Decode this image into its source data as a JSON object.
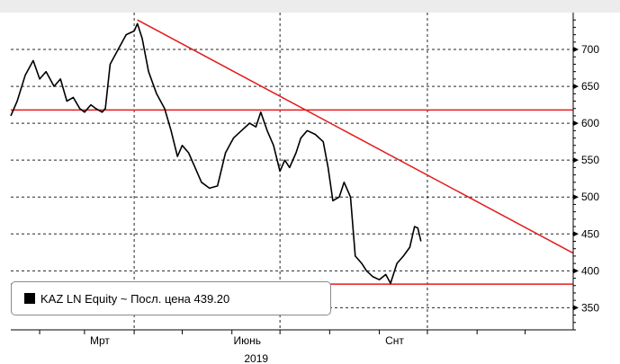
{
  "chart_data": {
    "type": "line",
    "series": [
      {
        "name": "KAZ LN Equity",
        "color": "#000000",
        "points": [
          [
            "2019-01-14",
            610
          ],
          [
            "2019-01-18",
            630
          ],
          [
            "2019-01-23",
            665
          ],
          [
            "2019-01-28",
            685
          ],
          [
            "2019-02-01",
            660
          ],
          [
            "2019-02-05",
            670
          ],
          [
            "2019-02-10",
            650
          ],
          [
            "2019-02-14",
            660
          ],
          [
            "2019-02-18",
            630
          ],
          [
            "2019-02-22",
            635
          ],
          [
            "2019-02-26",
            620
          ],
          [
            "2019-03-01",
            615
          ],
          [
            "2019-03-05",
            625
          ],
          [
            "2019-03-08",
            620
          ],
          [
            "2019-03-12",
            615
          ],
          [
            "2019-03-14",
            620
          ],
          [
            "2019-03-17",
            680
          ],
          [
            "2019-03-22",
            700
          ],
          [
            "2019-03-27",
            720
          ],
          [
            "2019-04-01",
            725
          ],
          [
            "2019-04-03",
            735
          ],
          [
            "2019-04-06",
            715
          ],
          [
            "2019-04-10",
            670
          ],
          [
            "2019-04-15",
            640
          ],
          [
            "2019-04-20",
            620
          ],
          [
            "2019-04-24",
            590
          ],
          [
            "2019-04-28",
            555
          ],
          [
            "2019-05-01",
            570
          ],
          [
            "2019-05-05",
            560
          ],
          [
            "2019-05-09",
            540
          ],
          [
            "2019-05-13",
            520
          ],
          [
            "2019-05-18",
            512
          ],
          [
            "2019-05-23",
            515
          ],
          [
            "2019-05-28",
            560
          ],
          [
            "2019-06-02",
            580
          ],
          [
            "2019-06-07",
            590
          ],
          [
            "2019-06-12",
            600
          ],
          [
            "2019-06-16",
            595
          ],
          [
            "2019-06-19",
            615
          ],
          [
            "2019-06-23",
            590
          ],
          [
            "2019-06-27",
            570
          ],
          [
            "2019-07-01",
            535
          ],
          [
            "2019-07-04",
            550
          ],
          [
            "2019-07-07",
            540
          ],
          [
            "2019-07-11",
            560
          ],
          [
            "2019-07-14",
            580
          ],
          [
            "2019-07-18",
            590
          ],
          [
            "2019-07-23",
            585
          ],
          [
            "2019-07-28",
            575
          ],
          [
            "2019-07-31",
            540
          ],
          [
            "2019-08-03",
            495
          ],
          [
            "2019-08-07",
            500
          ],
          [
            "2019-08-10",
            520
          ],
          [
            "2019-08-14",
            500
          ],
          [
            "2019-08-17",
            420
          ],
          [
            "2019-08-21",
            410
          ],
          [
            "2019-08-24",
            400
          ],
          [
            "2019-08-28",
            392
          ],
          [
            "2019-09-01",
            388
          ],
          [
            "2019-09-05",
            395
          ],
          [
            "2019-09-08",
            383
          ],
          [
            "2019-09-12",
            410
          ],
          [
            "2019-09-16",
            420
          ],
          [
            "2019-09-20",
            432
          ],
          [
            "2019-09-23",
            460
          ],
          [
            "2019-09-25",
            458
          ],
          [
            "2019-09-27",
            440
          ]
        ]
      }
    ],
    "trendlines": [
      {
        "from": [
          "2019-04-03",
          740
        ],
        "to": [
          "2019-12-31",
          424
        ],
        "color": "#e31a1c"
      }
    ],
    "hlines": [
      {
        "y": 618,
        "color": "#e31a1c"
      },
      {
        "y": 382,
        "color": "#e31a1c"
      }
    ],
    "xlim": [
      "2019-01-14",
      "2019-12-31"
    ],
    "ylim": [
      320,
      750
    ],
    "y_ticks": [
      350,
      400,
      450,
      500,
      550,
      600,
      650,
      700
    ],
    "x_ticks": [
      {
        "date": "2019-03-01",
        "label": "Мрт"
      },
      {
        "date": "2019-06-01",
        "label": "Июнь"
      },
      {
        "date": "2019-09-01",
        "label": "Снт"
      }
    ],
    "x_minor_ticks": [
      "2019-02-01",
      "2019-03-01",
      "2019-04-01",
      "2019-05-01",
      "2019-06-01",
      "2019-07-01",
      "2019-08-01",
      "2019-09-01",
      "2019-10-01",
      "2019-11-01",
      "2019-12-01"
    ],
    "x_grid": [
      "2019-01-01",
      "2019-04-01",
      "2019-07-01",
      "2019-10-01"
    ],
    "year_label": "2019",
    "grid": true,
    "legend_position": "bottom-left",
    "legend": "KAZ LN Equity ~ Посл. цена  439.20",
    "colors": {
      "line": "#000000",
      "support": "#e31a1c",
      "band": "#ececec"
    }
  }
}
